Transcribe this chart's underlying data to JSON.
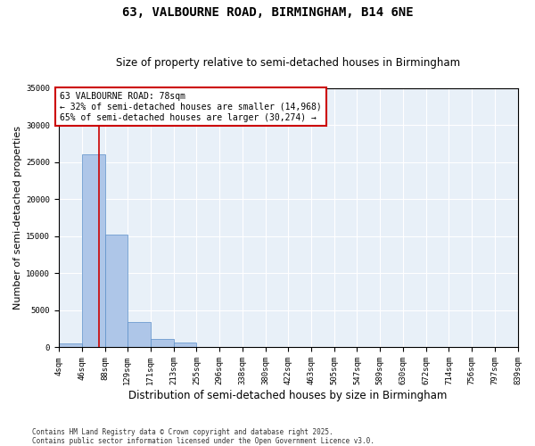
{
  "title": "63, VALBOURNE ROAD, BIRMINGHAM, B14 6NE",
  "subtitle": "Size of property relative to semi-detached houses in Birmingham",
  "xlabel": "Distribution of semi-detached houses by size in Birmingham",
  "ylabel": "Number of semi-detached properties",
  "bin_edges": [
    4,
    46,
    88,
    129,
    171,
    213,
    255,
    296,
    338,
    380,
    422,
    463,
    505,
    547,
    589,
    630,
    672,
    714,
    756,
    797,
    839
  ],
  "bar_heights": [
    500,
    26100,
    15200,
    3400,
    1100,
    600,
    80,
    30,
    15,
    10,
    5,
    3,
    2,
    2,
    1,
    1,
    1,
    1,
    1,
    1
  ],
  "bar_color": "#aec6e8",
  "bar_edge_color": "#5b8fc9",
  "property_size": 78,
  "red_line_color": "#cc0000",
  "annotation_text": "63 VALBOURNE ROAD: 78sqm\n← 32% of semi-detached houses are smaller (14,968)\n65% of semi-detached houses are larger (30,274) →",
  "annotation_box_color": "#cc0000",
  "annotation_text_color": "#000000",
  "ylim": [
    0,
    35000
  ],
  "yticks": [
    0,
    5000,
    10000,
    15000,
    20000,
    25000,
    30000,
    35000
  ],
  "background_color": "#e8f0f8",
  "grid_color": "#ffffff",
  "footer_text": "Contains HM Land Registry data © Crown copyright and database right 2025.\nContains public sector information licensed under the Open Government Licence v3.0.",
  "title_fontsize": 10,
  "subtitle_fontsize": 8.5,
  "axis_label_fontsize": 8,
  "tick_fontsize": 6.5,
  "annotation_fontsize": 7,
  "footer_fontsize": 5.5
}
